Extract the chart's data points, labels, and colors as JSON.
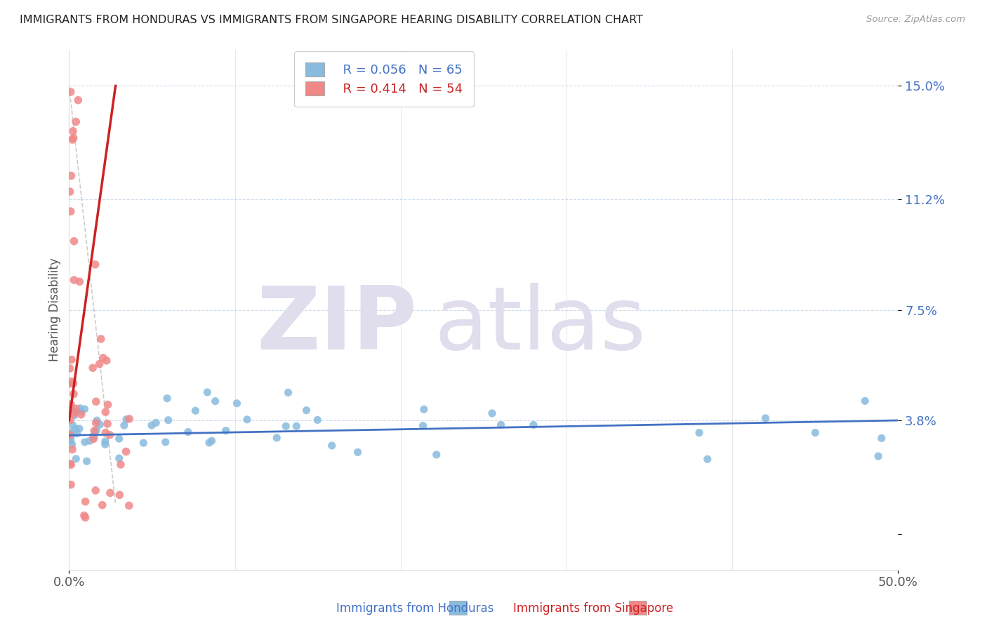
{
  "title": "IMMIGRANTS FROM HONDURAS VS IMMIGRANTS FROM SINGAPORE HEARING DISABILITY CORRELATION CHART",
  "source": "Source: ZipAtlas.com",
  "ylabel": "Hearing Disability",
  "ytick_vals": [
    0.0,
    0.038,
    0.075,
    0.112,
    0.15
  ],
  "ytick_labels": [
    "",
    "3.8%",
    "7.5%",
    "11.2%",
    "15.0%"
  ],
  "xlim": [
    0.0,
    0.5
  ],
  "ylim": [
    -0.012,
    0.162
  ],
  "xtick_vals": [
    0.0,
    0.5
  ],
  "xtick_labels": [
    "0.0%",
    "50.0%"
  ],
  "legend_r1": "R = 0.056",
  "legend_n1": "N = 65",
  "legend_r2": "R = 0.414",
  "legend_n2": "N = 54",
  "color_honduras": "#88bbdd",
  "color_singapore": "#f08888",
  "color_trend_honduras": "#4472c4",
  "color_trend_singapore": "#cc2222",
  "watermark_zip": "ZIP",
  "watermark_atlas": "atlas",
  "watermark_color": "#e0dded",
  "series1_label": "Immigrants from Honduras",
  "series2_label": "Immigrants from Singapore",
  "hon_trend_x": [
    0.0,
    0.5
  ],
  "hon_trend_y": [
    0.033,
    0.038
  ],
  "sing_trend_x": [
    0.0,
    0.028
  ],
  "sing_trend_y": [
    0.038,
    0.15
  ],
  "ref_line_x": [
    0.0,
    0.028
  ],
  "ref_line_y": [
    0.15,
    0.01
  ]
}
